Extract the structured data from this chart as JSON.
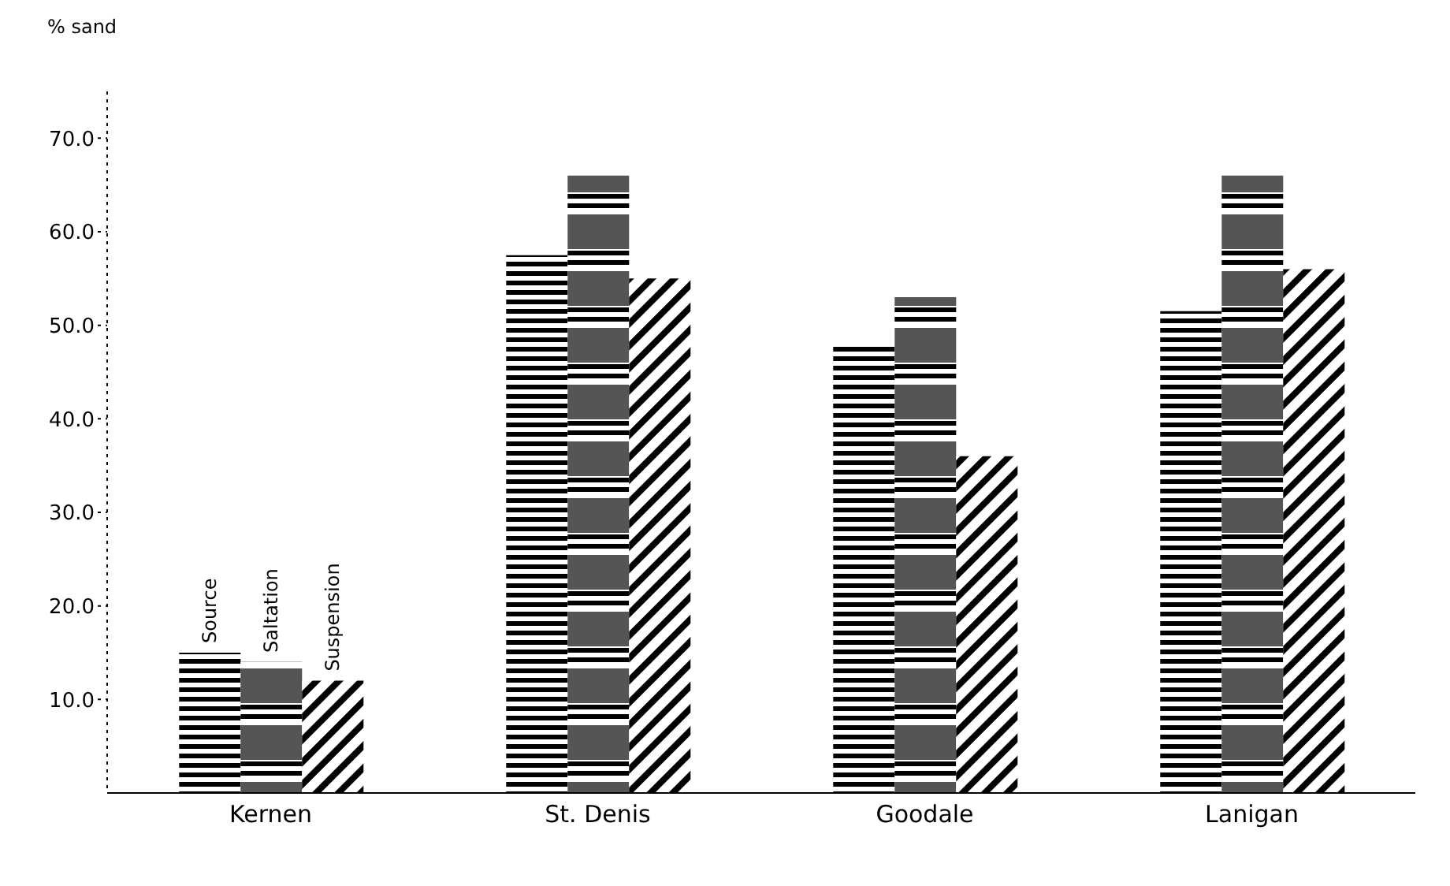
{
  "chart_data": {
    "type": "bar",
    "ylabel": "% sand",
    "categories": [
      "Kernen",
      "St. Denis",
      "Goodale",
      "Lanigan"
    ],
    "series": [
      {
        "name": "Source",
        "color": "#000000",
        "values": [
          15,
          57.5,
          48,
          51.5
        ]
      },
      {
        "name": "Saltation",
        "color": "#000000",
        "values": [
          14,
          66,
          53,
          66
        ]
      },
      {
        "name": "Suspension",
        "color": "#000000",
        "values": [
          12,
          55,
          36,
          56
        ]
      }
    ],
    "ylim": [
      0,
      75
    ],
    "yticks": [
      {
        "value": 10,
        "label": "10.0"
      },
      {
        "value": 20,
        "label": "20.0"
      },
      {
        "value": 30,
        "label": "30.0"
      },
      {
        "value": 40,
        "label": "40.0"
      },
      {
        "value": 50,
        "label": "50.0"
      },
      {
        "value": 60,
        "label": "60.0"
      },
      {
        "value": 70,
        "label": "70.0"
      }
    ],
    "grid": false,
    "legend": false
  }
}
